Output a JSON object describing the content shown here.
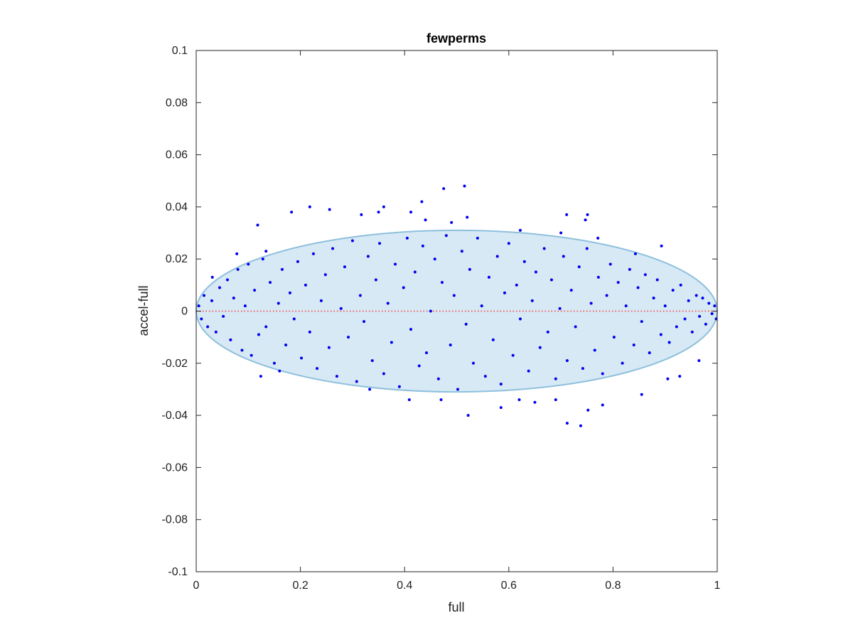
{
  "chart_data": {
    "type": "scatter",
    "title": "fewperms",
    "xlabel": "full",
    "ylabel": "accel-full",
    "xlim": [
      0,
      1
    ],
    "ylim": [
      -0.1,
      0.1
    ],
    "xticks": [
      0,
      0.2,
      0.4,
      0.6,
      0.8,
      1
    ],
    "xtick_labels": [
      "0",
      "0.2",
      "0.4",
      "0.6",
      "0.8",
      "1"
    ],
    "yticks": [
      -0.1,
      -0.08,
      -0.06,
      -0.04,
      -0.02,
      0,
      0.02,
      0.04,
      0.06,
      0.08,
      0.1
    ],
    "ytick_labels": [
      "-0.1",
      "-0.08",
      "-0.06",
      "-0.04",
      "-0.02",
      "0",
      "0.02",
      "0.04",
      "0.06",
      "0.08",
      "0.1"
    ],
    "grid": false,
    "marker_color": "#0000ee",
    "reference_line": {
      "y": 0,
      "style": "dotted",
      "color": "#ff3333"
    },
    "ellipse": {
      "cx": 0.5,
      "cy": 0,
      "rx": 0.5,
      "ry": 0.031,
      "fill": "#d6e9f4",
      "stroke": "#8fc0dd"
    },
    "points": [
      [
        0.475,
        0.047
      ],
      [
        0.515,
        0.048
      ],
      [
        0.433,
        0.042
      ],
      [
        0.218,
        0.04
      ],
      [
        0.256,
        0.039
      ],
      [
        0.183,
        0.038
      ],
      [
        0.36,
        0.04
      ],
      [
        0.35,
        0.038
      ],
      [
        0.412,
        0.038
      ],
      [
        0.44,
        0.035
      ],
      [
        0.52,
        0.036
      ],
      [
        0.317,
        0.037
      ],
      [
        0.49,
        0.034
      ],
      [
        0.711,
        0.037
      ],
      [
        0.751,
        0.037
      ],
      [
        0.118,
        0.033
      ],
      [
        0.622,
        0.031
      ],
      [
        0.747,
        0.035
      ],
      [
        0.7,
        0.03
      ],
      [
        0.771,
        0.028
      ],
      [
        0.893,
        0.025
      ],
      [
        0.843,
        0.022
      ],
      [
        0.078,
        0.022
      ],
      [
        0.134,
        0.023
      ],
      [
        0.031,
        0.013
      ],
      [
        0.47,
        -0.034
      ],
      [
        0.522,
        -0.04
      ],
      [
        0.585,
        -0.037
      ],
      [
        0.62,
        -0.034
      ],
      [
        0.65,
        -0.035
      ],
      [
        0.69,
        -0.034
      ],
      [
        0.712,
        -0.043
      ],
      [
        0.738,
        -0.044
      ],
      [
        0.752,
        -0.038
      ],
      [
        0.78,
        -0.036
      ],
      [
        0.409,
        -0.034
      ],
      [
        0.333,
        -0.03
      ],
      [
        0.124,
        -0.025
      ],
      [
        0.16,
        -0.023
      ],
      [
        0.855,
        -0.032
      ],
      [
        0.928,
        -0.025
      ],
      [
        0.965,
        -0.019
      ],
      [
        0.905,
        -0.026
      ],
      [
        0.005,
        0.002
      ],
      [
        0.01,
        -0.003
      ],
      [
        0.015,
        0.006
      ],
      [
        0.022,
        -0.006
      ],
      [
        0.03,
        0.004
      ],
      [
        0.038,
        -0.008
      ],
      [
        0.045,
        0.009
      ],
      [
        0.052,
        -0.002
      ],
      [
        0.06,
        0.012
      ],
      [
        0.066,
        -0.011
      ],
      [
        0.072,
        0.005
      ],
      [
        0.08,
        0.016
      ],
      [
        0.088,
        -0.015
      ],
      [
        0.094,
        0.002
      ],
      [
        0.1,
        0.018
      ],
      [
        0.106,
        -0.017
      ],
      [
        0.112,
        0.008
      ],
      [
        0.12,
        -0.009
      ],
      [
        0.128,
        0.02
      ],
      [
        0.134,
        -0.006
      ],
      [
        0.142,
        0.011
      ],
      [
        0.15,
        -0.02
      ],
      [
        0.158,
        0.003
      ],
      [
        0.165,
        0.016
      ],
      [
        0.172,
        -0.013
      ],
      [
        0.18,
        0.007
      ],
      [
        0.188,
        -0.003
      ],
      [
        0.195,
        0.019
      ],
      [
        0.202,
        -0.018
      ],
      [
        0.21,
        0.01
      ],
      [
        0.218,
        -0.008
      ],
      [
        0.225,
        0.022
      ],
      [
        0.232,
        -0.022
      ],
      [
        0.24,
        0.004
      ],
      [
        0.248,
        0.014
      ],
      [
        0.255,
        -0.014
      ],
      [
        0.262,
        0.024
      ],
      [
        0.27,
        -0.025
      ],
      [
        0.278,
        0.001
      ],
      [
        0.285,
        0.017
      ],
      [
        0.292,
        -0.01
      ],
      [
        0.3,
        0.027
      ],
      [
        0.308,
        -0.027
      ],
      [
        0.315,
        0.006
      ],
      [
        0.322,
        -0.004
      ],
      [
        0.33,
        0.021
      ],
      [
        0.338,
        -0.019
      ],
      [
        0.345,
        0.012
      ],
      [
        0.352,
        0.026
      ],
      [
        0.36,
        -0.024
      ],
      [
        0.368,
        0.003
      ],
      [
        0.375,
        -0.012
      ],
      [
        0.382,
        0.018
      ],
      [
        0.39,
        -0.029
      ],
      [
        0.398,
        0.009
      ],
      [
        0.405,
        0.028
      ],
      [
        0.412,
        -0.007
      ],
      [
        0.42,
        0.015
      ],
      [
        0.428,
        -0.021
      ],
      [
        0.435,
        0.025
      ],
      [
        0.442,
        -0.016
      ],
      [
        0.45,
        0.0
      ],
      [
        0.458,
        0.02
      ],
      [
        0.465,
        -0.026
      ],
      [
        0.472,
        0.011
      ],
      [
        0.48,
        0.029
      ],
      [
        0.488,
        -0.013
      ],
      [
        0.495,
        0.006
      ],
      [
        0.502,
        -0.03
      ],
      [
        0.51,
        0.023
      ],
      [
        0.518,
        -0.005
      ],
      [
        0.525,
        0.016
      ],
      [
        0.532,
        -0.02
      ],
      [
        0.54,
        0.028
      ],
      [
        0.548,
        0.002
      ],
      [
        0.555,
        -0.025
      ],
      [
        0.562,
        0.013
      ],
      [
        0.57,
        -0.011
      ],
      [
        0.578,
        0.021
      ],
      [
        0.585,
        -0.028
      ],
      [
        0.592,
        0.007
      ],
      [
        0.6,
        0.026
      ],
      [
        0.608,
        -0.017
      ],
      [
        0.615,
        0.01
      ],
      [
        0.622,
        -0.003
      ],
      [
        0.63,
        0.019
      ],
      [
        0.638,
        -0.023
      ],
      [
        0.645,
        0.004
      ],
      [
        0.652,
        0.015
      ],
      [
        0.66,
        -0.014
      ],
      [
        0.668,
        0.024
      ],
      [
        0.675,
        -0.008
      ],
      [
        0.682,
        0.012
      ],
      [
        0.69,
        -0.026
      ],
      [
        0.698,
        0.001
      ],
      [
        0.705,
        0.021
      ],
      [
        0.712,
        -0.019
      ],
      [
        0.72,
        0.008
      ],
      [
        0.728,
        -0.006
      ],
      [
        0.735,
        0.017
      ],
      [
        0.742,
        -0.022
      ],
      [
        0.75,
        0.024
      ],
      [
        0.758,
        0.003
      ],
      [
        0.765,
        -0.015
      ],
      [
        0.772,
        0.013
      ],
      [
        0.78,
        -0.024
      ],
      [
        0.788,
        0.006
      ],
      [
        0.795,
        0.018
      ],
      [
        0.802,
        -0.01
      ],
      [
        0.81,
        0.011
      ],
      [
        0.818,
        -0.02
      ],
      [
        0.825,
        0.002
      ],
      [
        0.832,
        0.016
      ],
      [
        0.84,
        -0.013
      ],
      [
        0.848,
        0.009
      ],
      [
        0.855,
        -0.004
      ],
      [
        0.862,
        0.014
      ],
      [
        0.87,
        -0.016
      ],
      [
        0.878,
        0.005
      ],
      [
        0.885,
        0.012
      ],
      [
        0.892,
        -0.009
      ],
      [
        0.9,
        0.002
      ],
      [
        0.908,
        -0.012
      ],
      [
        0.915,
        0.008
      ],
      [
        0.922,
        -0.006
      ],
      [
        0.93,
        0.01
      ],
      [
        0.938,
        -0.003
      ],
      [
        0.945,
        0.004
      ],
      [
        0.952,
        -0.008
      ],
      [
        0.96,
        0.006
      ],
      [
        0.966,
        -0.002
      ],
      [
        0.972,
        0.005
      ],
      [
        0.978,
        -0.005
      ],
      [
        0.984,
        0.003
      ],
      [
        0.99,
        -0.001
      ],
      [
        0.995,
        0.002
      ],
      [
        0.998,
        -0.003
      ]
    ]
  }
}
